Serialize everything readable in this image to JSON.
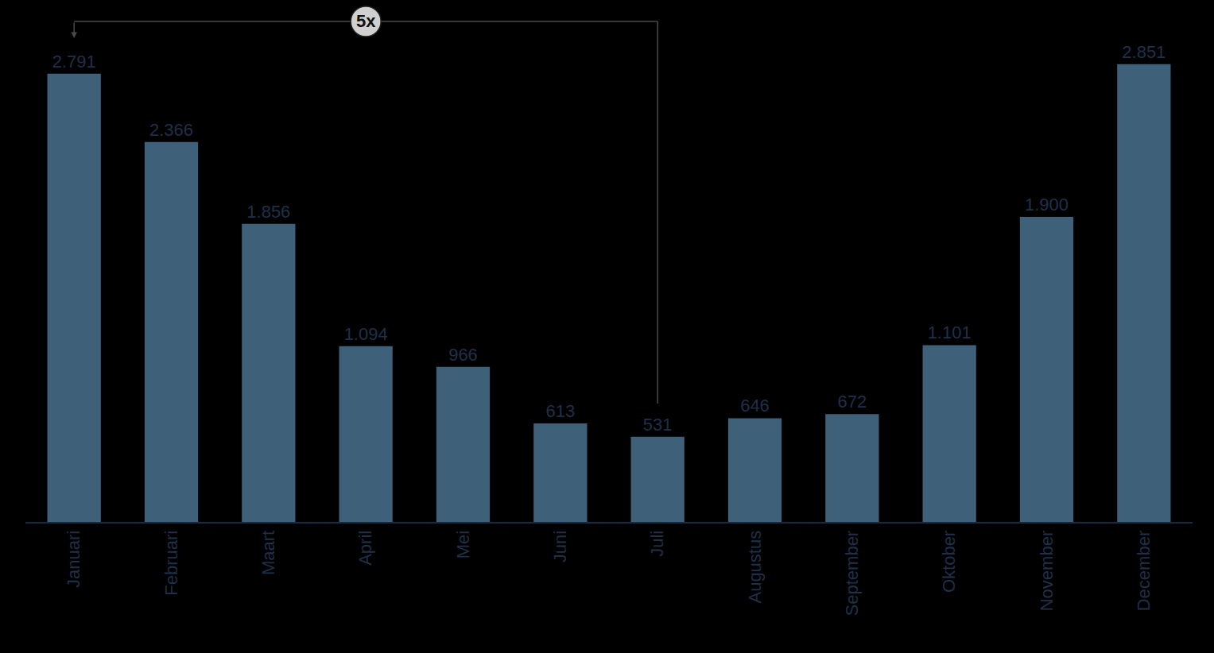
{
  "chart_data": {
    "type": "bar",
    "categories": [
      "Januari",
      "Februari",
      "Maart",
      "April",
      "Mei",
      "Juni",
      "Juli",
      "Augustus",
      "September",
      "Oktober",
      "November",
      "December"
    ],
    "values": [
      2791,
      2366,
      1856,
      1094,
      966,
      613,
      531,
      646,
      672,
      1101,
      1900,
      2851
    ],
    "value_labels": [
      "2.791",
      "2.366",
      "1.856",
      "1.094",
      "966",
      "613",
      "531",
      "646",
      "672",
      "1.101",
      "1.900",
      "2.851"
    ],
    "data_labels": true,
    "color": "#3e6079",
    "ylim": [
      0,
      3250
    ],
    "grid": false,
    "tick_labels": "x",
    "annotation": {
      "text": "5x",
      "from": "Juli",
      "to": "Januari"
    }
  }
}
